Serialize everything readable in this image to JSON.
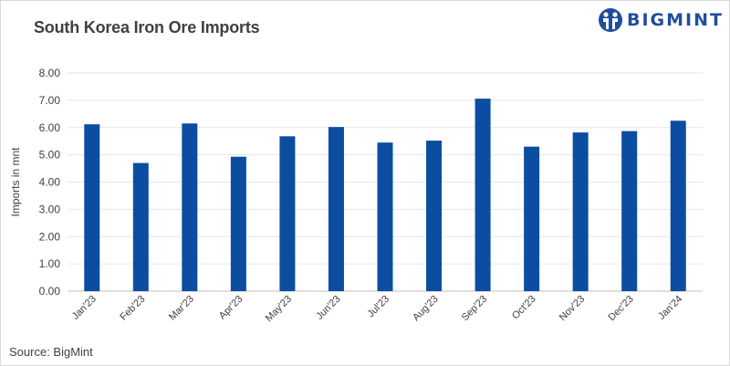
{
  "title": "South Korea Iron Ore Imports",
  "logo": {
    "text": "BIGMINT",
    "icon": "bigmint-logo-icon",
    "color": "#1f4e9c"
  },
  "source": "Source: BigMint",
  "chart_data": {
    "type": "bar",
    "title": "South Korea Iron Ore Imports",
    "ylabel": "Imports in mnt",
    "xlabel": "",
    "categories": [
      "Jan'23",
      "Feb'23",
      "Mar'23",
      "Apr'23",
      "May'23",
      "Jun'23",
      "Jul'23",
      "Aug'23",
      "Sep'23",
      "Oct'23",
      "Nov'23",
      "Dec'23",
      "Jan'24"
    ],
    "values": [
      6.12,
      4.7,
      6.15,
      4.93,
      5.68,
      6.02,
      5.45,
      5.52,
      7.06,
      5.3,
      5.82,
      5.87,
      6.25
    ],
    "ylim": [
      0,
      8
    ],
    "yticks": [
      "0.00",
      "1.00",
      "2.00",
      "3.00",
      "4.00",
      "5.00",
      "6.00",
      "7.00",
      "8.00"
    ],
    "bar_color": "#0c4da2",
    "grid": true,
    "legend": "none"
  }
}
